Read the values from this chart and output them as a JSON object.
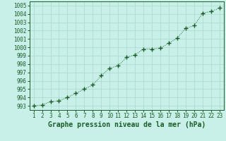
{
  "x": [
    1,
    2,
    3,
    4,
    5,
    6,
    7,
    8,
    9,
    10,
    11,
    12,
    13,
    14,
    15,
    16,
    17,
    18,
    19,
    20,
    21,
    22,
    23
  ],
  "y": [
    993.0,
    993.1,
    993.5,
    993.6,
    994.0,
    994.5,
    995.0,
    995.5,
    996.6,
    997.5,
    997.8,
    998.8,
    999.1,
    999.8,
    999.8,
    999.9,
    1000.5,
    1001.1,
    1002.3,
    1002.6,
    1004.1,
    1004.3,
    1004.7
  ],
  "ylim": [
    992.5,
    1005.5
  ],
  "yticks": [
    993,
    994,
    995,
    996,
    997,
    998,
    999,
    1000,
    1001,
    1002,
    1003,
    1004,
    1005
  ],
  "xlim": [
    0.5,
    23.5
  ],
  "xticks": [
    1,
    2,
    3,
    4,
    5,
    6,
    7,
    8,
    9,
    10,
    11,
    12,
    13,
    14,
    15,
    16,
    17,
    18,
    19,
    20,
    21,
    22,
    23
  ],
  "xlabel": "Graphe pression niveau de la mer (hPa)",
  "line_color": "#1a5c28",
  "marker_color": "#1a5c28",
  "bg_color": "#c8f0e8",
  "grid_color": "#a8d8cc",
  "tick_label_fontsize": 5.5,
  "xlabel_fontsize": 7.0
}
